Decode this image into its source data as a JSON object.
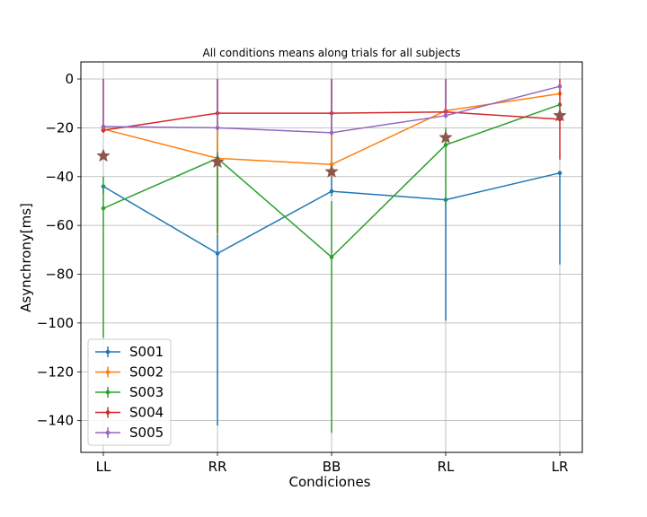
{
  "chart_data": {
    "type": "line",
    "title": "All conditions means along trials for all subjects",
    "xlabel": "Condiciones",
    "ylabel": "Asynchrony[ms]",
    "categories": [
      "LL",
      "RR",
      "BB",
      "RL",
      "LR"
    ],
    "ylim": [
      -153,
      7
    ],
    "yticks": [
      0,
      -20,
      -40,
      -60,
      -80,
      -100,
      -120,
      -140
    ],
    "grid": true,
    "legend_position": "lower-left",
    "series": [
      {
        "name": "S001",
        "color": "#1f77b4",
        "values": [
          -44,
          -71.5,
          -46,
          -49.5,
          -38.5
        ],
        "err_low": [
          -47,
          -142,
          -48,
          -99,
          -76
        ],
        "err_high": [
          -44,
          0,
          0,
          -49.5,
          -38.5
        ]
      },
      {
        "name": "S002",
        "color": "#ff7f0e",
        "values": [
          -20.5,
          -32.5,
          -35,
          -13,
          -6
        ],
        "err_low": [
          -22,
          -64,
          -40,
          -16,
          -7
        ],
        "err_high": [
          0,
          0,
          0,
          0,
          -6
        ]
      },
      {
        "name": "S003",
        "color": "#2ca02c",
        "values": [
          -53,
          -32.5,
          -73,
          -27,
          -10.5
        ],
        "err_low": [
          -106,
          -63,
          -145,
          -52,
          -11
        ],
        "err_high": [
          -40,
          -30,
          -50,
          -20,
          -10.5
        ]
      },
      {
        "name": "S004",
        "color": "#d62728",
        "values": [
          -21,
          -14,
          -14,
          -13.5,
          -16.5
        ],
        "err_low": [
          -22,
          -15,
          -15,
          -15,
          -33
        ],
        "err_high": [
          0,
          0,
          0,
          0,
          0
        ]
      },
      {
        "name": "S005",
        "color": "#9467bd",
        "values": [
          -19.5,
          -20,
          -22,
          -15,
          -3
        ],
        "err_low": [
          -21,
          -21,
          -23,
          -16,
          -4
        ],
        "err_high": [
          0,
          0,
          0,
          0,
          -2
        ]
      }
    ],
    "stars": {
      "color": "#8c564b",
      "values": [
        -31.5,
        -34,
        -38,
        -24,
        -15
      ]
    }
  }
}
